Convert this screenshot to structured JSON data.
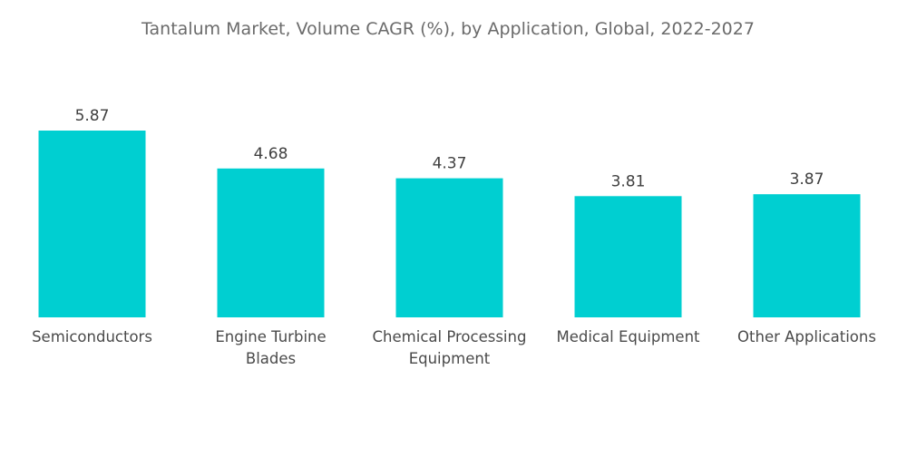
{
  "chart_data": {
    "type": "bar",
    "title": "Tantalum Market, Volume CAGR (%), by Application, Global, 2022-2027",
    "categories": [
      [
        "Semiconductors"
      ],
      [
        "Engine Turbine",
        "Blades"
      ],
      [
        "Chemical Processing",
        "Equipment"
      ],
      [
        "Medical Equipment"
      ],
      [
        "Other Applications"
      ]
    ],
    "values": [
      5.87,
      4.68,
      4.37,
      3.81,
      3.87
    ],
    "value_labels": [
      "5.87",
      "4.68",
      "4.37",
      "3.81",
      "3.87"
    ],
    "xlabel": "",
    "ylabel": "",
    "ylim": [
      0,
      5.87
    ],
    "grid": false,
    "legend": "none",
    "bar_color": "#00cfd1"
  }
}
